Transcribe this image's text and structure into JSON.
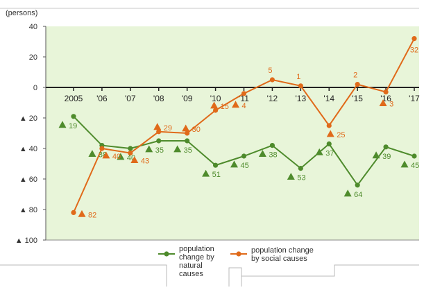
{
  "chart_data": {
    "type": "line",
    "unit_label": "(persons)",
    "categories": [
      "2005",
      "'06",
      "'07",
      "'08",
      "'09",
      "'10",
      "'11",
      "'12",
      "'13",
      "'14",
      "'15",
      "'16",
      "'17"
    ],
    "y_tick_labels": [
      "40",
      "20",
      "0",
      "▲ 20",
      "▲ 40",
      "▲ 60",
      "▲ 80",
      "▲ 100"
    ],
    "y_ticks": [
      40,
      20,
      0,
      -20,
      -40,
      -60,
      -80,
      -100
    ],
    "ylim": [
      -100,
      40
    ],
    "grid": false,
    "plot_background": "#e8f5d9",
    "series": [
      {
        "name": "population change by natural causes",
        "color": "#4e8b2c",
        "values": [
          -19,
          -38,
          -40,
          -35,
          -35,
          -51,
          -45,
          -38,
          -53,
          -37,
          -64,
          -39,
          -45
        ],
        "labels": [
          "19",
          "38",
          "40",
          "35",
          "35",
          "51",
          "45",
          "38",
          "53",
          "37",
          "64",
          "39",
          "45"
        ],
        "label_negative": [
          true,
          true,
          true,
          true,
          true,
          true,
          true,
          true,
          true,
          true,
          true,
          true,
          true
        ]
      },
      {
        "name": "population change by social causes",
        "color": "#e06a1a",
        "values": [
          -82,
          -40,
          -43,
          -29,
          -30,
          -15,
          -4,
          5,
          1,
          -25,
          2,
          -3,
          32
        ],
        "labels": [
          "82",
          "40",
          "43",
          "29",
          "30",
          "15",
          "4",
          "5",
          "1",
          "25",
          "2",
          "3",
          "32"
        ],
        "label_negative": [
          true,
          true,
          true,
          true,
          true,
          true,
          true,
          false,
          false,
          true,
          false,
          true,
          false
        ]
      }
    ],
    "legend": {
      "position": "bottom",
      "items": [
        {
          "label_lines": [
            "population",
            "change by",
            "natural",
            "causes"
          ],
          "color": "#4e8b2c"
        },
        {
          "label_lines": [
            "population change",
            "by social causes"
          ],
          "color": "#e06a1a"
        }
      ]
    }
  }
}
